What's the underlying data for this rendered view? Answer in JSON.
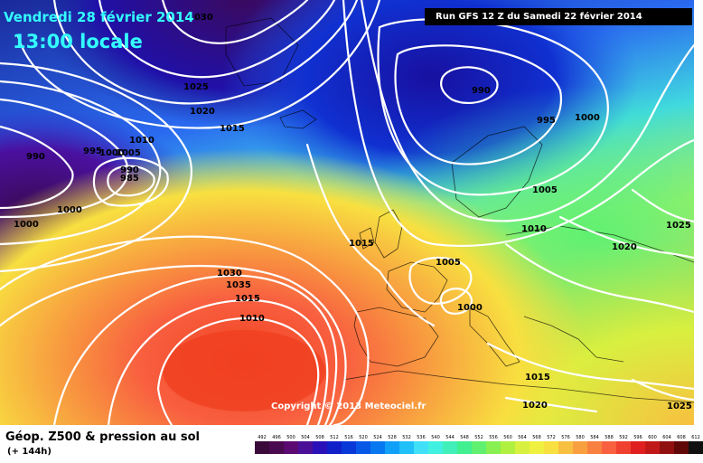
{
  "header": {
    "date": "Vendredi 28 février 2014",
    "time": "13:00 locale",
    "run": "Run GFS 12 Z du Samedi 22 février 2014"
  },
  "copyright": "Copyright © 2013 Meteociel.fr",
  "footer": {
    "title": "Géop. Z500 & pression au sol",
    "subtitle": "(+ 144h)"
  },
  "isobars": [
    {
      "label": "1030"
    },
    {
      "label": "1025"
    },
    {
      "label": "1020"
    },
    {
      "label": "1015"
    },
    {
      "label": "1010"
    },
    {
      "label": "995"
    },
    {
      "label": "1000"
    },
    {
      "label": "1005"
    },
    {
      "label": "990"
    },
    {
      "label": "985"
    },
    {
      "label": "990"
    },
    {
      "label": "1000"
    },
    {
      "label": "1000"
    },
    {
      "label": "990"
    },
    {
      "label": "995"
    },
    {
      "label": "1000"
    },
    {
      "label": "1005"
    },
    {
      "label": "1010"
    },
    {
      "label": "1015"
    },
    {
      "label": "1005"
    },
    {
      "label": "1000"
    },
    {
      "label": "1020"
    },
    {
      "label": "1025"
    },
    {
      "label": "1030"
    },
    {
      "label": "1035"
    },
    {
      "label": "1015"
    },
    {
      "label": "1010"
    },
    {
      "label": "1015"
    },
    {
      "label": "1020"
    },
    {
      "label": "1025"
    }
  ],
  "scale": {
    "labels": [
      "492",
      "496",
      "500",
      "504",
      "508",
      "512",
      "516",
      "520",
      "524",
      "528",
      "532",
      "536",
      "540",
      "544",
      "548",
      "552",
      "556",
      "560",
      "564",
      "568",
      "572",
      "576",
      "580",
      "584",
      "588",
      "592",
      "596",
      "600",
      "604",
      "608",
      "612"
    ],
    "colors": [
      "#3a0a3a",
      "#4a0a50",
      "#5a0a70",
      "#4a1098",
      "#2a10b8",
      "#1020c8",
      "#0838d8",
      "#0858e8",
      "#0878f0",
      "#10a0f8",
      "#20c0f8",
      "#40e0f8",
      "#40f0e0",
      "#40f0b8",
      "#40f090",
      "#60f070",
      "#88f050",
      "#b0f040",
      "#d8f040",
      "#f0f040",
      "#f8e040",
      "#f8c040",
      "#f8a040",
      "#f88040",
      "#f86040",
      "#f04030",
      "#e02020",
      "#c01818",
      "#901010",
      "#600808",
      "#101010"
    ]
  }
}
